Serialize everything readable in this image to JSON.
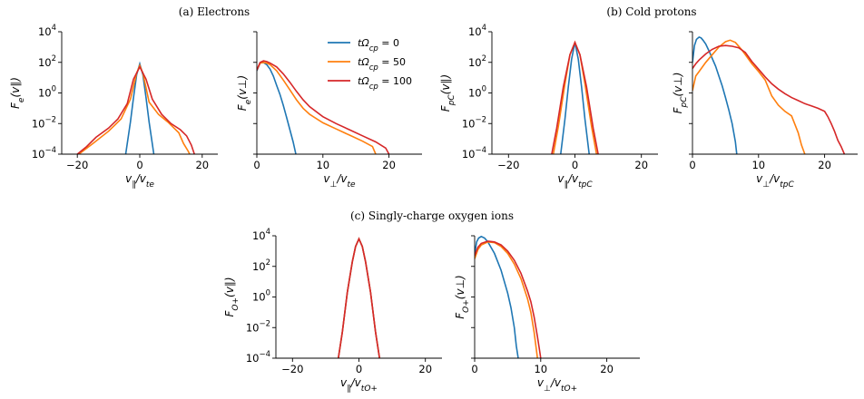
{
  "chart_data": {
    "type": "line",
    "legend": {
      "placement": "top-right of panel (a) right",
      "entries": [
        {
          "label": "tΩcp = 0",
          "color": "#1f77b4"
        },
        {
          "label": "tΩcp = 50",
          "color": "#ff7f0e"
        },
        {
          "label": "tΩcp = 100",
          "color": "#d62728"
        }
      ]
    },
    "groups": [
      {
        "title": "(a) Electrons"
      },
      {
        "title": "(b) Cold protons"
      },
      {
        "title": "(c) Singly-charge oxygen ions"
      }
    ],
    "panels": [
      {
        "ylabel": "Fe(v∥)",
        "xlabel": "v∥/vte",
        "xlim": [
          -25,
          25
        ],
        "ylim_log10": [
          -4,
          4
        ],
        "xticks": [
          -20,
          0,
          20
        ],
        "ylog_ticks": [
          4,
          2,
          0,
          -2,
          -4
        ],
        "show_yticks": true,
        "series": [
          {
            "t": 0,
            "x": [
              -4.5,
              -3,
              -2,
              -1,
              0,
              1,
              2,
              3,
              4.5
            ],
            "log10y": [
              -4,
              -1.9,
              -0.3,
              1.2,
              1.9,
              1.2,
              -0.3,
              -1.9,
              -4
            ]
          },
          {
            "t": 50,
            "x": [
              -19.5,
              -15,
              -10,
              -6,
              -3,
              -1,
              0,
              1,
              3,
              6,
              9,
              11,
              12.5,
              14,
              15.5,
              16
            ],
            "log10y": [
              -4,
              -3.3,
              -2.5,
              -1.7,
              -0.4,
              1.3,
              1.8,
              1.3,
              -0.6,
              -1.4,
              -1.9,
              -2.3,
              -2.6,
              -3.3,
              -3.8,
              -4
            ]
          },
          {
            "t": 100,
            "x": [
              -20,
              -17,
              -14,
              -10,
              -7,
              -4,
              -2,
              0,
              2,
              4,
              7,
              10,
              13,
              15,
              16.5,
              17.5
            ],
            "log10y": [
              -4,
              -3.5,
              -2.9,
              -2.3,
              -1.7,
              -0.7,
              0.9,
              1.7,
              0.9,
              -0.4,
              -1.4,
              -2,
              -2.4,
              -2.8,
              -3.4,
              -4
            ]
          }
        ]
      },
      {
        "ylabel": "Fe(v⊥)",
        "xlabel": "v⊥/vte",
        "xlim": [
          0,
          25
        ],
        "ylim_log10": [
          -4,
          4
        ],
        "xticks": [
          0,
          10,
          20
        ],
        "ylog_ticks": [
          4,
          2,
          0,
          -2,
          -4
        ],
        "show_yticks": false,
        "series": [
          {
            "t": 0,
            "x": [
              0,
              0.5,
              1,
              1.5,
              2,
              2.5,
              3,
              3.5,
              4,
              4.5,
              5,
              5.5,
              5.9
            ],
            "log10y": [
              1.45,
              1.95,
              2.0,
              1.85,
              1.55,
              1.1,
              0.5,
              -0.1,
              -0.8,
              -1.6,
              -2.4,
              -3.2,
              -4
            ]
          },
          {
            "t": 50,
            "x": [
              0,
              0.5,
              1,
              1.5,
              2,
              3,
              4,
              5,
              6,
              7,
              8,
              10,
              12,
              14,
              16,
              17.5,
              18
            ],
            "log10y": [
              1.5,
              1.95,
              2.0,
              1.95,
              1.85,
              1.45,
              0.85,
              0.2,
              -0.45,
              -1.0,
              -1.4,
              -1.95,
              -2.35,
              -2.75,
              -3.15,
              -3.5,
              -4
            ]
          },
          {
            "t": 100,
            "x": [
              0,
              0.5,
              1,
              1.5,
              2,
              3,
              4,
              5,
              6,
              7,
              8,
              10,
              12,
              14,
              16,
              18,
              19.5,
              20
            ],
            "log10y": [
              1.5,
              2.0,
              2.1,
              2.05,
              1.95,
              1.7,
              1.25,
              0.7,
              0.1,
              -0.45,
              -0.9,
              -1.55,
              -2.0,
              -2.4,
              -2.8,
              -3.2,
              -3.6,
              -4
            ]
          }
        ]
      },
      {
        "ylabel": "FpC(v∥)",
        "xlabel": "v∥/vtpC",
        "xlim": [
          -25,
          25
        ],
        "ylim_log10": [
          -4,
          4
        ],
        "xticks": [
          -20,
          0,
          20
        ],
        "ylog_ticks": [
          4,
          2,
          0,
          -2,
          -4
        ],
        "show_yticks": true,
        "series": [
          {
            "t": 0,
            "x": [
              -4.3,
              -3,
              -2,
              -1,
              0,
              1,
              2,
              3,
              4.3
            ],
            "log10y": [
              -4,
              -1.7,
              0.4,
              2.2,
              3.3,
              2.2,
              0.4,
              -1.7,
              -4
            ]
          },
          {
            "t": 50,
            "x": [
              -6.5,
              -5,
              -3,
              -1.5,
              0,
              1.5,
              3,
              5,
              6.5
            ],
            "log10y": [
              -4,
              -2.2,
              0.6,
              2.5,
              3.3,
              2.5,
              0.6,
              -2.2,
              -4
            ]
          },
          {
            "t": 100,
            "x": [
              -7,
              -5.5,
              -3.5,
              -1.5,
              0,
              1.5,
              3.5,
              5.5,
              7
            ],
            "log10y": [
              -4,
              -2.3,
              0.4,
              2.5,
              3.3,
              2.5,
              0.4,
              -2.3,
              -4
            ]
          }
        ]
      },
      {
        "ylabel": "FpC(v⊥)",
        "xlabel": "v⊥/vtpC",
        "xlim": [
          0,
          25
        ],
        "ylim_log10": [
          -4,
          4
        ],
        "xticks": [
          0,
          10,
          20
        ],
        "ylog_ticks": [
          4,
          2,
          0,
          -2,
          -4
        ],
        "show_yticks": false,
        "series": [
          {
            "t": 0,
            "x": [
              0,
              0.3,
              0.6,
              1,
              1.3,
              1.6,
              2,
              2.5,
              3,
              3.5,
              4,
              4.5,
              5,
              5.5,
              6,
              6.5,
              6.7
            ],
            "log10y": [
              2.0,
              3.1,
              3.5,
              3.65,
              3.6,
              3.45,
              3.2,
              2.75,
              2.25,
              1.75,
              1.1,
              0.45,
              -0.3,
              -1.1,
              -2.0,
              -3.2,
              -4
            ]
          },
          {
            "t": 50,
            "x": [
              0,
              0.5,
              1,
              2,
              3,
              4,
              5,
              5.7,
              6.5,
              7.5,
              9,
              10,
              11,
              12,
              13,
              14,
              15,
              16,
              16.5,
              17
            ],
            "log10y": [
              0.15,
              1.1,
              1.4,
              2.0,
              2.5,
              3.0,
              3.35,
              3.45,
              3.3,
              2.8,
              1.9,
              1.4,
              0.85,
              -0.2,
              -0.8,
              -1.2,
              -1.5,
              -2.6,
              -3.4,
              -4
            ]
          },
          {
            "t": 100,
            "x": [
              0,
              0.5,
              1,
              2,
              3,
              4,
              5,
              6,
              7,
              8,
              9,
              10,
              11,
              12,
              13,
              14,
              15,
              16,
              17,
              18,
              19,
              20,
              20.5,
              21,
              21.5,
              22,
              22.5,
              23
            ],
            "log10y": [
              1.6,
              1.9,
              2.15,
              2.55,
              2.85,
              3.05,
              3.1,
              3.05,
              2.95,
              2.65,
              2.05,
              1.55,
              1.05,
              0.6,
              0.25,
              -0.05,
              -0.3,
              -0.5,
              -0.7,
              -0.85,
              -1.0,
              -1.2,
              -1.55,
              -2.0,
              -2.5,
              -3.1,
              -3.5,
              -4
            ]
          }
        ]
      },
      {
        "ylabel": "FO+(v∥)",
        "xlabel": "v∥/vtO+",
        "xlim": [
          -25,
          25
        ],
        "ylim_log10": [
          -4,
          4
        ],
        "xticks": [
          -20,
          0,
          20
        ],
        "ylog_ticks": [
          4,
          2,
          0,
          -2,
          -4
        ],
        "show_yticks": true,
        "series": [
          {
            "t": 0,
            "x": [
              -6.2,
              -5,
              -3.5,
              -2,
              -1,
              0,
              1,
              2,
              3.5,
              5,
              6.2
            ],
            "log10y": [
              -4,
              -2.3,
              0.3,
              2.3,
              3.3,
              3.8,
              3.3,
              2.3,
              0.3,
              -2.3,
              -4
            ]
          },
          {
            "t": 50,
            "x": [
              -6.2,
              -5,
              -3.5,
              -2,
              -1,
              0,
              1,
              2,
              3.5,
              5,
              6.2
            ],
            "log10y": [
              -4,
              -2.3,
              0.3,
              2.3,
              3.3,
              3.8,
              3.3,
              2.3,
              0.3,
              -2.3,
              -4
            ]
          },
          {
            "t": 100,
            "x": [
              -6.2,
              -5,
              -3.5,
              -2,
              -1,
              0,
              1,
              2,
              3.5,
              5,
              6.2
            ],
            "log10y": [
              -4,
              -2.3,
              0.3,
              2.3,
              3.3,
              3.8,
              3.3,
              2.3,
              0.3,
              -2.3,
              -4
            ]
          }
        ]
      },
      {
        "ylabel": "FO+(v⊥)",
        "xlabel": "v⊥/vtO+",
        "xlim": [
          0,
          25
        ],
        "ylim_log10": [
          -4,
          4
        ],
        "xticks": [
          0,
          10,
          20
        ],
        "ylog_ticks": [
          4,
          2,
          0,
          -2,
          -4
        ],
        "show_yticks": false,
        "series": [
          {
            "t": 0,
            "x": [
              0,
              0.3,
              0.6,
              1,
              1.5,
              2,
              3,
              4,
              5,
              5.5,
              6,
              6.3,
              6.6
            ],
            "log10y": [
              2.8,
              3.6,
              3.85,
              3.95,
              3.85,
              3.6,
              2.85,
              1.75,
              0.25,
              -0.7,
              -2.0,
              -3.2,
              -4
            ]
          },
          {
            "t": 50,
            "x": [
              0,
              0.5,
              1,
              2,
              3,
              4,
              5,
              6,
              7,
              8,
              8.5,
              9,
              9.3,
              9.5
            ],
            "log10y": [
              2.5,
              3.1,
              3.4,
              3.6,
              3.55,
              3.3,
              2.85,
              2.15,
              1.2,
              -0.1,
              -1.0,
              -2.3,
              -3.3,
              -4
            ]
          },
          {
            "t": 100,
            "x": [
              0,
              0.5,
              1,
              2,
              3,
              4,
              5,
              6,
              7,
              8,
              8.5,
              9,
              9.5,
              9.8,
              10
            ],
            "log10y": [
              2.7,
              3.25,
              3.5,
              3.65,
              3.6,
              3.4,
              3.0,
              2.4,
              1.55,
              0.4,
              -0.3,
              -1.3,
              -2.6,
              -3.4,
              -4
            ]
          }
        ]
      }
    ]
  }
}
